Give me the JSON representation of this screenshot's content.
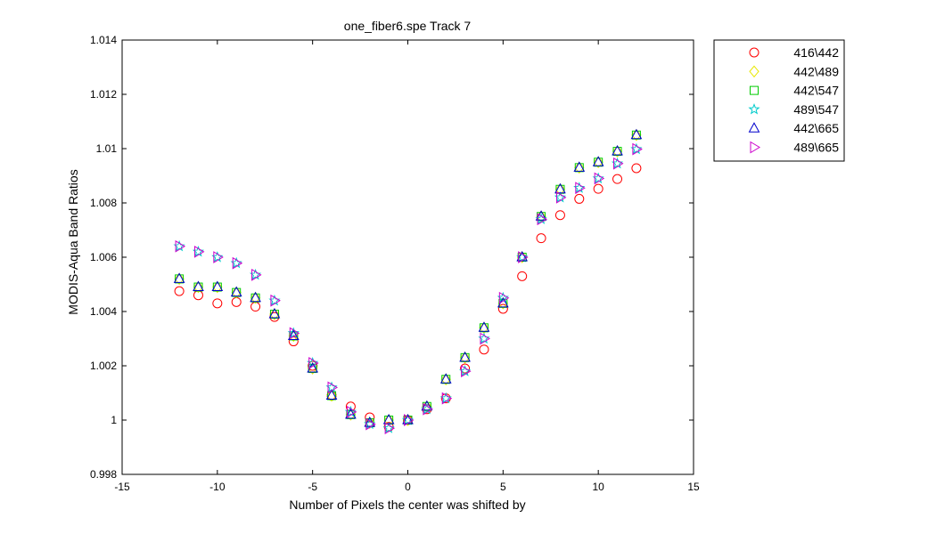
{
  "chart_data": {
    "type": "scatter",
    "title": "one_fiber6.spe   Track 7",
    "xlabel": "Number of Pixels the center was shifted by",
    "ylabel": "MODIS-Aqua Band Ratios",
    "xlim": [
      -15,
      15
    ],
    "ylim": [
      0.998,
      1.014
    ],
    "xticks": [
      -15,
      -10,
      -5,
      0,
      5,
      10,
      15
    ],
    "xtick_labels": [
      "-15",
      "-10",
      "-5",
      "0",
      "5",
      "10",
      "15"
    ],
    "yticks": [
      0.998,
      1.0,
      1.002,
      1.004,
      1.006,
      1.008,
      1.01,
      1.012,
      1.014
    ],
    "ytick_labels": [
      "0.998",
      "1",
      "1.002",
      "1.004",
      "1.006",
      "1.008",
      "1.01",
      "1.012",
      "1.014"
    ],
    "grid": false,
    "legend_position": "outside-top-right",
    "x": [
      -12,
      -11,
      -10,
      -9,
      -8,
      -7,
      -6,
      -5,
      -4,
      -3,
      -2,
      -1,
      0,
      1,
      2,
      3,
      4,
      5,
      6,
      7,
      8,
      9,
      10,
      11,
      12
    ],
    "series": [
      {
        "name": "416\\442",
        "marker": "circle",
        "color": "#ff0000",
        "values": [
          1.00475,
          1.0046,
          1.0043,
          1.00435,
          1.00418,
          1.0038,
          1.0029,
          1.002,
          1.0009,
          1.0005,
          1.0001,
          0.99975,
          1.0,
          1.0004,
          1.0008,
          1.0019,
          1.0026,
          1.0041,
          1.0053,
          1.0067,
          1.00755,
          1.00815,
          1.00852,
          1.00888,
          1.00928
        ]
      },
      {
        "name": "442\\489",
        "marker": "diamond",
        "color": "#e8e800",
        "values": [
          1.0052,
          1.0049,
          1.0049,
          1.0047,
          1.0045,
          1.0039,
          1.0031,
          1.0019,
          1.0009,
          1.0002,
          0.9999,
          1.0,
          1.0,
          1.0005,
          1.0015,
          1.0023,
          1.0034,
          1.0043,
          1.006,
          1.0075,
          1.0085,
          1.0093,
          1.0095,
          1.0099,
          1.0105
        ]
      },
      {
        "name": "442\\547",
        "marker": "square",
        "color": "#00cc00",
        "values": [
          1.0052,
          1.0049,
          1.0049,
          1.0047,
          1.0045,
          1.0039,
          1.0031,
          1.0019,
          1.0009,
          1.0002,
          0.9999,
          1.0,
          1.0,
          1.0005,
          1.0015,
          1.0023,
          1.0034,
          1.0043,
          1.006,
          1.0075,
          1.0085,
          1.0093,
          1.0095,
          1.0099,
          1.0105
        ]
      },
      {
        "name": "489\\547",
        "marker": "star",
        "color": "#00cccc",
        "values": [
          1.0064,
          1.0062,
          1.006,
          1.00578,
          1.00535,
          1.0044,
          1.0032,
          1.0021,
          1.0012,
          1.0003,
          0.99985,
          0.9997,
          1.0,
          1.0004,
          1.0008,
          1.0018,
          1.003,
          1.0045,
          1.006,
          1.0074,
          1.0082,
          1.00855,
          1.0089,
          1.00945,
          1.00998
        ]
      },
      {
        "name": "442\\665",
        "marker": "triangle-up",
        "color": "#0000cc",
        "values": [
          1.0052,
          1.0049,
          1.0049,
          1.0047,
          1.0045,
          1.0039,
          1.0031,
          1.0019,
          1.0009,
          1.0002,
          0.9999,
          1.0,
          1.0,
          1.0005,
          1.0015,
          1.0023,
          1.0034,
          1.0043,
          1.006,
          1.0075,
          1.0085,
          1.0093,
          1.0095,
          1.0099,
          1.0105
        ]
      },
      {
        "name": "489\\665",
        "marker": "triangle-right",
        "color": "#cc00cc",
        "values": [
          1.0064,
          1.0062,
          1.006,
          1.00578,
          1.00535,
          1.0044,
          1.0032,
          1.0021,
          1.0012,
          1.0003,
          0.99985,
          0.9997,
          1.0,
          1.0004,
          1.0008,
          1.0018,
          1.003,
          1.0045,
          1.006,
          1.0074,
          1.0082,
          1.00855,
          1.0089,
          1.00945,
          1.00998
        ]
      }
    ]
  }
}
